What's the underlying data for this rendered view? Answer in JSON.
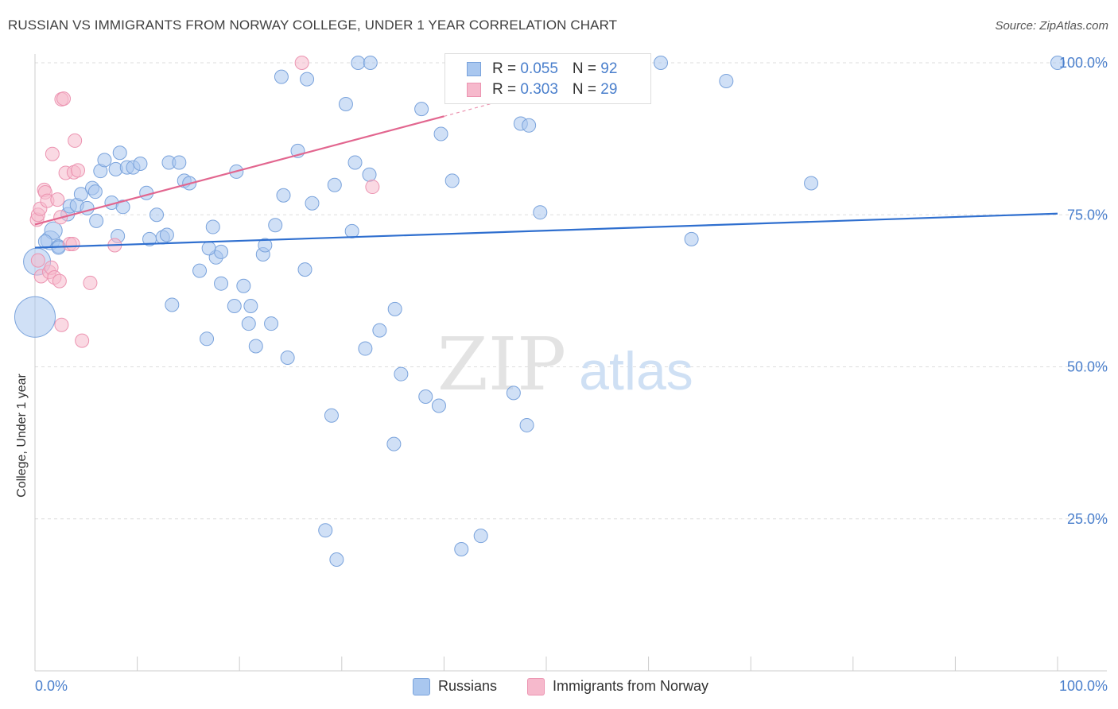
{
  "title": "RUSSIAN VS IMMIGRANTS FROM NORWAY COLLEGE, UNDER 1 YEAR CORRELATION CHART",
  "source": "Source: ZipAtlas.com",
  "watermark": {
    "zip": "ZIP",
    "atlas": "atlas"
  },
  "legend_top": [
    {
      "r_label": "R = ",
      "r_value": "0.055",
      "n_label": "N = ",
      "n_value": "92"
    },
    {
      "r_label": "R = ",
      "r_value": "0.303",
      "n_label": "N = ",
      "n_value": "29"
    }
  ],
  "legend_bottom": [
    {
      "label": "Russians"
    },
    {
      "label": "Immigrants from Norway"
    }
  ],
  "colors": {
    "blue_fill": "#a9c7ef",
    "blue_stroke": "#7aa3dc",
    "blue_line": "#2f6fcf",
    "pink_fill": "#f6b9cc",
    "pink_stroke": "#ec94b1",
    "pink_line": "#e2668f",
    "tick_label": "#4a7fcc",
    "grid": "#dddddd"
  },
  "chart_data": {
    "type": "scatter",
    "title": "RUSSIAN VS IMMIGRANTS FROM NORWAY COLLEGE, UNDER 1 YEAR CORRELATION CHART",
    "xlabel": "",
    "ylabel": "College, Under 1 year",
    "xlim": [
      0,
      100
    ],
    "ylim": [
      0,
      100
    ],
    "x_tick_labels": [
      "0.0%",
      "100.0%"
    ],
    "y_ticks": [
      25,
      50,
      75,
      100
    ],
    "y_tick_labels": [
      "25.0%",
      "50.0%",
      "75.0%",
      "100.0%"
    ],
    "grid": true,
    "series": [
      {
        "name": "Russians",
        "R": 0.055,
        "N": 92,
        "trend": {
          "x": [
            0,
            100
          ],
          "y": [
            69.6,
            75.2
          ]
        },
        "points": [
          [
            0,
            58.2,
            3
          ],
          [
            0.2,
            67.3,
            2
          ],
          [
            1.5,
            70.8,
            1.4
          ],
          [
            1.8,
            72.4,
            1.3
          ],
          [
            2.3,
            69.8,
            1
          ],
          [
            3.2,
            75.1,
            1
          ],
          [
            3.4,
            76.4,
            1
          ],
          [
            4.1,
            76.6,
            1
          ],
          [
            4.5,
            78.4,
            1
          ],
          [
            5.1,
            76.1,
            1
          ],
          [
            5.6,
            79.4,
            1
          ],
          [
            5.9,
            78.8,
            1
          ],
          [
            6.4,
            82.2,
            1
          ],
          [
            6.8,
            84.0,
            1
          ],
          [
            7.5,
            77.0,
            1
          ],
          [
            7.9,
            82.5,
            1
          ],
          [
            8.3,
            85.2,
            1
          ],
          [
            8.6,
            76.3,
            1
          ],
          [
            9.0,
            82.8,
            1
          ],
          [
            9.6,
            82.8,
            1
          ],
          [
            10.3,
            83.4,
            1
          ],
          [
            10.9,
            78.6,
            1
          ],
          [
            11.2,
            71.0,
            1
          ],
          [
            11.9,
            75.0,
            1
          ],
          [
            12.5,
            71.3,
            1
          ],
          [
            12.9,
            71.7,
            1
          ],
          [
            13.1,
            83.6,
            1
          ],
          [
            14.1,
            83.6,
            1
          ],
          [
            14.6,
            80.6,
            1
          ],
          [
            15.1,
            80.2,
            1
          ],
          [
            16.1,
            65.8,
            1
          ],
          [
            17.4,
            73.0,
            1
          ],
          [
            17.7,
            68.0,
            1
          ],
          [
            18.2,
            68.9,
            1
          ],
          [
            18.2,
            63.7,
            1
          ],
          [
            19.7,
            82.1,
            1
          ],
          [
            20.4,
            63.3,
            1
          ],
          [
            19.5,
            60.0,
            1
          ],
          [
            21.1,
            60.0,
            1
          ],
          [
            20.9,
            57.1,
            1
          ],
          [
            21.6,
            53.4,
            1
          ],
          [
            22.3,
            68.5,
            1
          ],
          [
            22.5,
            70.0,
            1
          ],
          [
            23.1,
            57.1,
            1
          ],
          [
            23.5,
            73.3,
            1
          ],
          [
            24.1,
            97.7,
            1
          ],
          [
            24.3,
            78.2,
            1
          ],
          [
            24.7,
            51.5,
            1
          ],
          [
            25.7,
            85.5,
            1
          ],
          [
            26.4,
            66.0,
            1
          ],
          [
            26.6,
            97.3,
            1
          ],
          [
            27.1,
            76.9,
            1
          ],
          [
            28.4,
            23.1,
            1
          ],
          [
            29.0,
            42.0,
            1
          ],
          [
            29.3,
            79.9,
            1
          ],
          [
            29.5,
            18.3,
            1
          ],
          [
            30.4,
            93.2,
            1
          ],
          [
            31.0,
            72.3,
            1
          ],
          [
            31.3,
            83.6,
            1
          ],
          [
            31.6,
            100.0,
            1
          ],
          [
            32.3,
            53.0,
            1
          ],
          [
            32.7,
            81.6,
            1
          ],
          [
            32.8,
            100.0,
            1
          ],
          [
            33.7,
            56.0,
            1
          ],
          [
            35.1,
            37.3,
            1
          ],
          [
            35.2,
            59.5,
            1
          ],
          [
            35.8,
            48.8,
            1
          ],
          [
            37.8,
            92.4,
            1
          ],
          [
            38.2,
            45.1,
            1
          ],
          [
            39.5,
            43.6,
            1
          ],
          [
            39.7,
            88.3,
            1
          ],
          [
            40.8,
            80.6,
            1
          ],
          [
            41.7,
            20.0,
            1
          ],
          [
            43.6,
            22.2,
            1
          ],
          [
            46.8,
            45.7,
            1
          ],
          [
            47.5,
            90.0,
            1
          ],
          [
            48.3,
            89.7,
            1
          ],
          [
            48.1,
            40.4,
            1
          ],
          [
            49.4,
            75.4,
            1
          ],
          [
            59.3,
            100.0,
            1
          ],
          [
            61.2,
            100.0,
            1
          ],
          [
            64.2,
            71.0,
            1
          ],
          [
            67.6,
            97.0,
            1
          ],
          [
            75.9,
            80.2,
            1
          ],
          [
            100.0,
            100.0,
            1
          ],
          [
            2.3,
            69.6,
            1
          ],
          [
            1.0,
            70.6,
            1
          ],
          [
            6.0,
            74.0,
            1
          ],
          [
            8.1,
            71.5,
            1
          ],
          [
            16.8,
            54.6,
            1
          ],
          [
            17.0,
            69.5,
            1
          ],
          [
            13.4,
            60.2,
            1
          ]
        ]
      },
      {
        "name": "Immigrants from Norway",
        "R": 0.303,
        "N": 29,
        "trend": {
          "x": [
            0,
            40
          ],
          "y": [
            73.4,
            91.2
          ]
        },
        "trend_dashed": {
          "x": [
            40,
            48
          ],
          "y": [
            91.2,
            94.8
          ]
        },
        "points": [
          [
            0.2,
            74.2
          ],
          [
            0.3,
            75.0
          ],
          [
            0.5,
            76.0
          ],
          [
            0.3,
            67.5
          ],
          [
            0.6,
            64.9
          ],
          [
            0.9,
            79.1
          ],
          [
            1.0,
            78.7
          ],
          [
            1.2,
            77.3
          ],
          [
            1.4,
            65.6
          ],
          [
            1.6,
            66.3
          ],
          [
            1.9,
            64.7
          ],
          [
            1.7,
            85.0
          ],
          [
            2.2,
            77.5
          ],
          [
            2.4,
            64.1
          ],
          [
            2.5,
            74.6
          ],
          [
            2.6,
            94.0
          ],
          [
            2.8,
            94.1
          ],
          [
            2.6,
            56.9
          ],
          [
            3.0,
            81.9
          ],
          [
            3.4,
            70.2
          ],
          [
            3.7,
            70.2
          ],
          [
            3.8,
            82.0
          ],
          [
            3.9,
            87.2
          ],
          [
            4.2,
            82.3
          ],
          [
            4.6,
            54.3
          ],
          [
            5.4,
            63.8
          ],
          [
            7.8,
            70.0
          ],
          [
            26.1,
            100.0
          ],
          [
            33.0,
            79.6
          ]
        ]
      }
    ]
  }
}
